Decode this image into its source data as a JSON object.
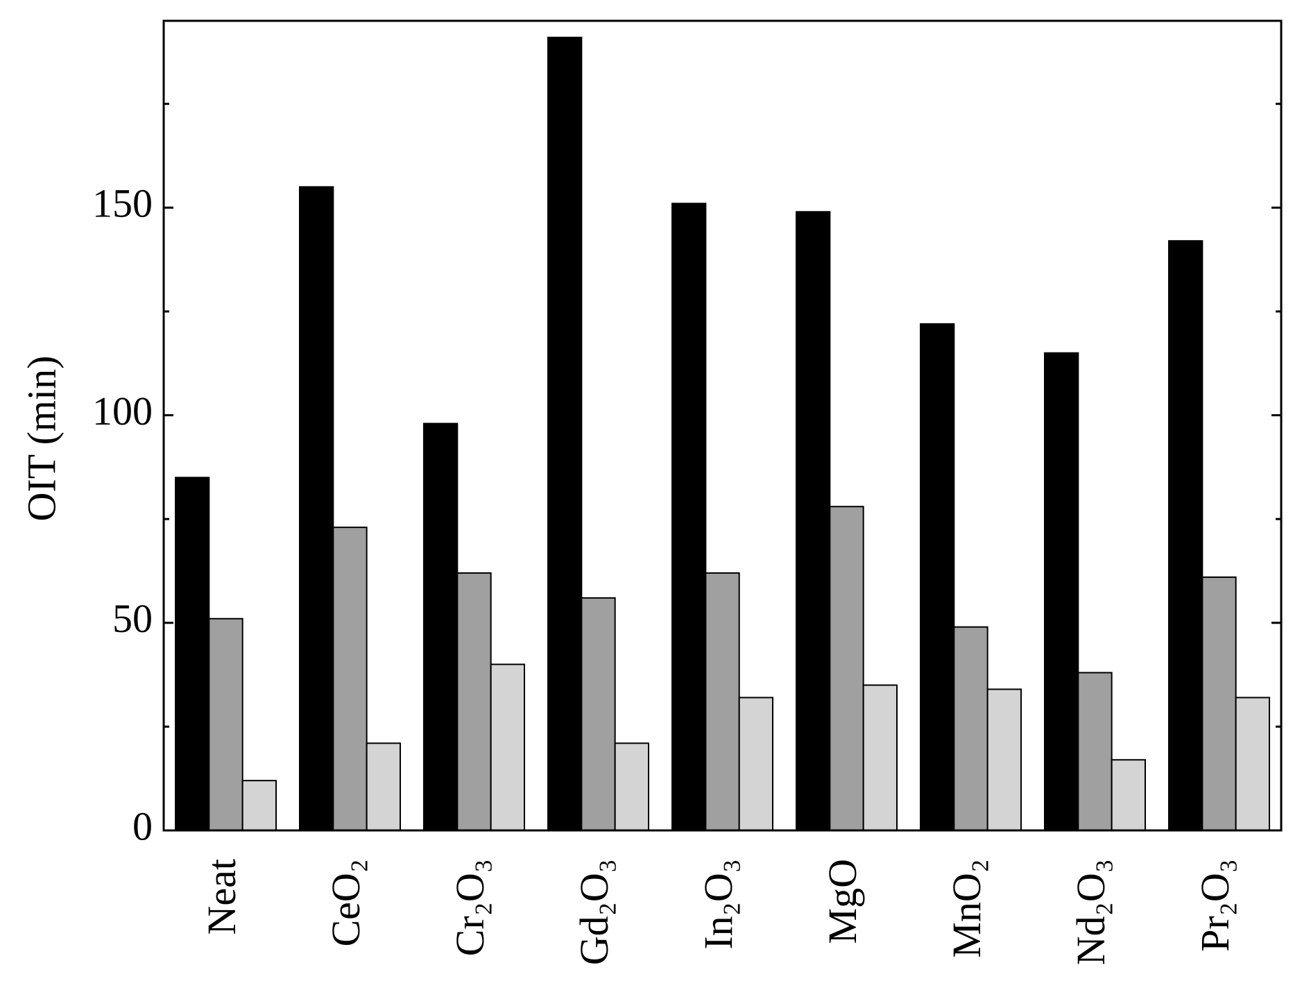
{
  "chart_data": {
    "type": "bar",
    "y_label": "OIT (min)",
    "categories": [
      "Neat",
      "CeO₂",
      "Cr₂O₃",
      "Gd₂O₃",
      "In₂O₃",
      "MgO",
      "MnO₂",
      "Nd₂O₃",
      "Pr₂O₃"
    ],
    "series": [
      {
        "color": "#000000",
        "values": [
          85,
          155,
          98,
          191,
          151,
          149,
          122,
          115,
          142
        ]
      },
      {
        "color": "#a0a0a0",
        "values": [
          51,
          73,
          62,
          56,
          62,
          78,
          49,
          38,
          61
        ]
      },
      {
        "color": "#d4d4d4",
        "values": [
          12,
          21,
          40,
          21,
          32,
          35,
          34,
          17,
          32
        ]
      }
    ],
    "ylim": [
      0,
      195
    ],
    "yticks": [
      0,
      50,
      100,
      150
    ],
    "yminor_ticks": [
      25,
      75,
      125,
      175
    ],
    "grid": false
  }
}
